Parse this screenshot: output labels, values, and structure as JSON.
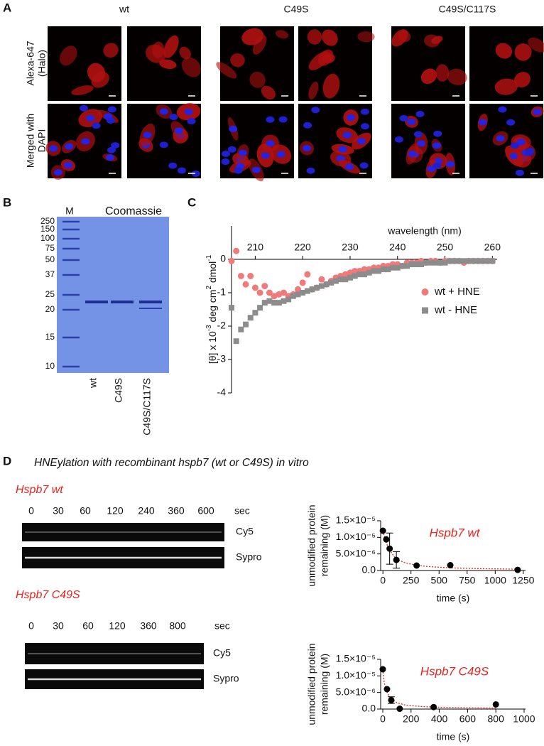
{
  "panel_a": {
    "label": "A",
    "columns": [
      "wt",
      "C49S",
      "C49S/C117S"
    ],
    "rows": [
      [
        "Alexa-647",
        "(Halo)"
      ],
      [
        "Merged with",
        "DAPI"
      ]
    ]
  },
  "panel_b": {
    "label": "B",
    "marker_lane": "M",
    "title": "Coomassie",
    "markers": [
      250,
      150,
      100,
      75,
      50,
      37,
      25,
      20,
      15,
      10
    ],
    "lanes": [
      "wt",
      "C49S",
      "C49S/C117S"
    ]
  },
  "panel_c_label": "C",
  "panel_d": {
    "label": "D",
    "title": "HNEylation with recombinant hspb7 (wt or C49S) in vitro",
    "gels": [
      {
        "title": "Hspb7 wt",
        "times": [
          0,
          30,
          60,
          120,
          240,
          360,
          600
        ],
        "unit": "sec",
        "bands": [
          "Cy5",
          "Sypro"
        ]
      },
      {
        "title": "Hspb7 C49S",
        "times": [
          0,
          30,
          60,
          120,
          360,
          800
        ],
        "unit": "sec",
        "bands": [
          "Cy5",
          "Sypro"
        ]
      }
    ]
  },
  "chart_data": [
    {
      "type": "scatter",
      "xlabel": "wavelength (nm)",
      "ylabel": {
        "text": [
          "[θ] x 10",
          " deg cm",
          " dmol"
        ],
        "sup": [
          "-3",
          "2",
          "-1"
        ]
      },
      "x": [
        205,
        206,
        207,
        208,
        209,
        210,
        211,
        212,
        213,
        214,
        215,
        216,
        217,
        218,
        219,
        220,
        221,
        222,
        223,
        224,
        225,
        226,
        227,
        228,
        229,
        230,
        231,
        232,
        233,
        234,
        235,
        236,
        237,
        238,
        239,
        240,
        241,
        242,
        243,
        244,
        245,
        246,
        247,
        248,
        249,
        250,
        251,
        252,
        253,
        254,
        255,
        256,
        257,
        258,
        259,
        260
      ],
      "xlim": [
        205,
        261
      ],
      "xticks": [
        210,
        220,
        230,
        240,
        250,
        260
      ],
      "ylim": [
        -4,
        1
      ],
      "yticks": [
        -4,
        -3,
        -2,
        -1,
        0
      ],
      "legend": "right",
      "series": [
        {
          "name": "wt + HNE",
          "color": "#f07a7a",
          "marker": "circle",
          "values": [
            -0.05,
            0.25,
            -0.5,
            -0.75,
            -0.5,
            -0.85,
            -1.0,
            -0.8,
            -1.0,
            -1.1,
            -1.05,
            -1.0,
            -1.1,
            -1.05,
            -0.9,
            -0.7,
            -0.45,
            -0.9,
            -0.85,
            -0.6,
            -0.75,
            -0.65,
            -0.55,
            -0.5,
            -0.45,
            -0.4,
            -0.35,
            -0.35,
            -0.3,
            -0.3,
            -0.25,
            -0.25,
            -0.2,
            -0.2,
            -0.15,
            -0.15,
            -0.2,
            -0.1,
            -0.1,
            -0.1,
            -0.05,
            -0.1,
            -0.05,
            -0.05,
            -0.1,
            -0.05,
            -0.05,
            -0.05,
            -0.05,
            -0.1,
            -0.05,
            -0.05,
            -0.05,
            -0.05,
            -0.05,
            -0.05
          ]
        },
        {
          "name": "wt - HNE",
          "color": "#8c8c8c",
          "marker": "square",
          "values": [
            -1.45,
            -2.45,
            -2.1,
            -1.95,
            -1.75,
            -1.6,
            -1.45,
            -1.3,
            -1.25,
            -1.3,
            -1.3,
            -1.25,
            -1.2,
            -1.1,
            -1.05,
            -1.0,
            -0.95,
            -0.9,
            -0.85,
            -0.8,
            -0.75,
            -0.7,
            -0.65,
            -0.6,
            -0.6,
            -0.55,
            -0.5,
            -0.45,
            -0.45,
            -0.4,
            -0.35,
            -0.35,
            -0.3,
            -0.3,
            -0.25,
            -0.25,
            -0.2,
            -0.2,
            -0.15,
            -0.15,
            -0.15,
            -0.1,
            -0.1,
            -0.1,
            -0.1,
            -0.1,
            -0.05,
            -0.05,
            -0.05,
            -0.05,
            -0.05,
            -0.05,
            -0.05,
            -0.05,
            -0.05,
            -0.05
          ]
        }
      ]
    },
    {
      "type": "scatter",
      "annotation": "Hspb7 wt",
      "annotation_color": "#e8231d",
      "xlabel": "time (s)",
      "ylabel": [
        "unmodified protein",
        "remaining (M)"
      ],
      "x": [
        0,
        30,
        60,
        120,
        300,
        600,
        1200
      ],
      "values": [
        1.2e-05,
        9.4e-06,
        6.6e-06,
        3.2e-06,
        1.5e-06,
        1.6e-06,
        2e-07
      ],
      "errors": [
        null,
        null,
        4.7e-06,
        2.5e-06,
        null,
        null,
        null
      ],
      "color": "#000000",
      "fit": {
        "x": [
          0,
          25,
          50,
          100,
          150,
          200,
          300,
          400,
          600,
          800,
          1000,
          1200
        ],
        "y": [
          1.2e-05,
          8.8e-06,
          6.7e-06,
          4.2e-06,
          3e-06,
          2.3e-06,
          1.6e-06,
          1.2e-06,
          8e-07,
          6e-07,
          5e-07,
          4e-07
        ],
        "color": "#e8231d"
      },
      "xlim": [
        -20,
        1270
      ],
      "xticks": [
        0,
        250,
        500,
        750,
        1000,
        1250
      ],
      "ylim": [
        0,
        1.5e-05
      ],
      "yticks": [
        {
          "value": 0,
          "label": "0.0"
        },
        {
          "value": 5e-06,
          "label": "5.0×10⁻⁶"
        },
        {
          "value": 1e-05,
          "label": "1.0×10⁻⁵"
        },
        {
          "value": 1.5e-05,
          "label": "1.5×10⁻⁵"
        }
      ]
    },
    {
      "type": "scatter",
      "annotation": "Hspb7 C49S",
      "annotation_color": "#e8231d",
      "xlabel": "time (s)",
      "ylabel": [
        "unmodified protein",
        "remaining (M)"
      ],
      "x": [
        0,
        30,
        60,
        120,
        360,
        800
      ],
      "values": [
        1.2e-05,
        6e-06,
        2.7e-06,
        1e-07,
        6e-07,
        1.4e-06
      ],
      "errors": [
        null,
        null,
        1e-06,
        null,
        null,
        null
      ],
      "color": "#000000",
      "fit": {
        "x": [
          0,
          10,
          25,
          50,
          100,
          150,
          200,
          300,
          400,
          600,
          800
        ],
        "y": [
          1.2e-05,
          8e-06,
          5.5e-06,
          3.5e-06,
          1.9e-06,
          1.3e-06,
          1e-06,
          7e-07,
          5.5e-07,
          4e-07,
          3e-07
        ],
        "color": "#e8231d"
      },
      "xlim": [
        -15,
        1010
      ],
      "xticks": [
        0,
        200,
        400,
        600,
        800,
        1000
      ],
      "ylim": [
        0,
        1.5e-05
      ],
      "yticks": [
        {
          "value": 0,
          "label": "0.0"
        },
        {
          "value": 5e-06,
          "label": "5.0×10⁻⁶"
        },
        {
          "value": 1e-05,
          "label": "1.0×10⁻⁵"
        },
        {
          "value": 1.5e-05,
          "label": "1.5×10⁻⁵"
        }
      ]
    }
  ]
}
